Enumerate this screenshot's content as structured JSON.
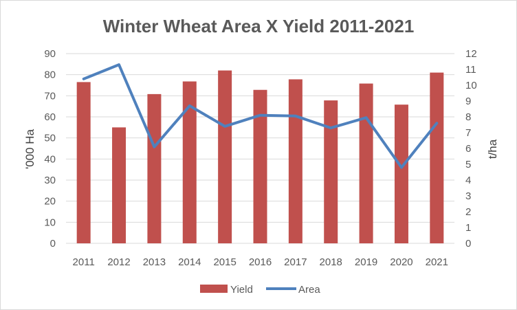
{
  "chart_data": {
    "type": "bar",
    "title": "Winter Wheat Area X Yield 2011-2021",
    "categories": [
      "2011",
      "2012",
      "2013",
      "2014",
      "2015",
      "2016",
      "2017",
      "2018",
      "2019",
      "2020",
      "2021"
    ],
    "series": [
      {
        "name": "Yield",
        "chart_type": "bar",
        "axis": "left",
        "values": [
          76.5,
          55,
          70.8,
          76.8,
          82,
          72.8,
          77.8,
          67.8,
          75.8,
          65.8,
          81
        ]
      },
      {
        "name": "Area",
        "chart_type": "line",
        "axis": "right",
        "values": [
          10.4,
          11.3,
          6.1,
          8.7,
          7.4,
          8.1,
          8.05,
          7.3,
          7.95,
          4.8,
          7.6
        ]
      }
    ],
    "ylabel_left": "'000 Ha",
    "ylabel_right": "t/ha",
    "ylim_left": [
      0,
      90
    ],
    "ylim_right": [
      0,
      12
    ],
    "yticks_left": [
      "0",
      "10",
      "20",
      "30",
      "40",
      "50",
      "60",
      "70",
      "80",
      "90"
    ],
    "yticks_right": [
      "0",
      "1",
      "2",
      "3",
      "4",
      "5",
      "6",
      "7",
      "8",
      "9",
      "10",
      "11",
      "12"
    ],
    "grid": true,
    "legend_position": "bottom",
    "colors": {
      "Yield": "#c0504d",
      "Area": "#4f81bd",
      "grid": "#d9d9d9",
      "text": "#595959"
    }
  }
}
